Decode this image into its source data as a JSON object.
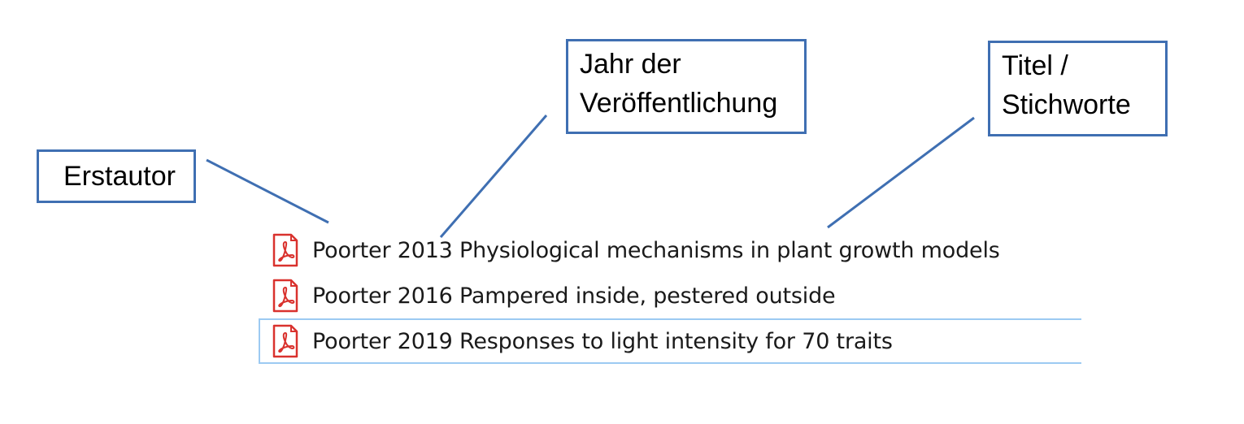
{
  "callouts": {
    "author": "Erstautor",
    "year_line1": "Jahr der",
    "year_line2": "Veröffentlichung",
    "title_line1": "Titel /",
    "title_line2": "Stichworte"
  },
  "files": [
    {
      "name": "Poorter 2013 Physiological mechanisms in plant growth models",
      "icon": "pdf-icon",
      "selected": false
    },
    {
      "name": "Poorter 2016 Pampered inside, pestered outside",
      "icon": "pdf-icon",
      "selected": false
    },
    {
      "name": "Poorter 2019 Responses to light intensity for 70 traits",
      "icon": "pdf-icon",
      "selected": true
    }
  ],
  "colors": {
    "callout_border": "#3f6fb2",
    "selection_border": "#9ccaf2",
    "pdf_red": "#d9322e"
  }
}
